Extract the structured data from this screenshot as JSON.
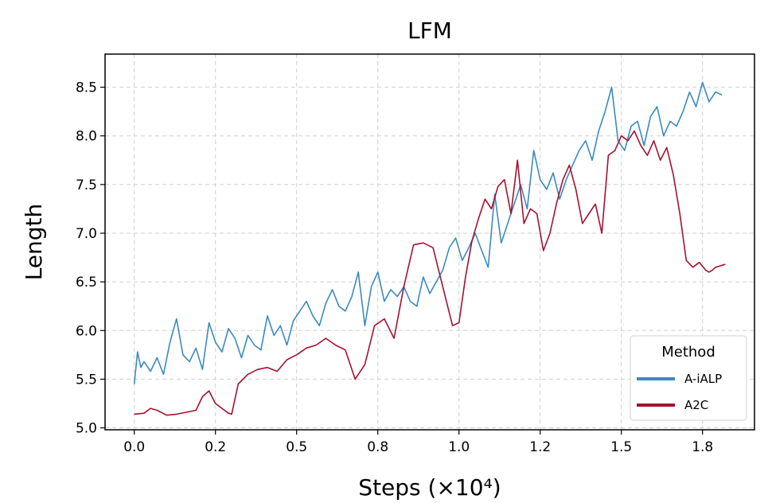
{
  "chart_data": {
    "type": "line",
    "title": "LFM",
    "xlabel": "Steps (×10⁴)",
    "ylabel": "Length",
    "xlim": [
      -0.09,
      1.91
    ],
    "ylim": [
      4.98,
      8.84
    ],
    "x_ticks": [
      0.0,
      0.25,
      0.5,
      0.75,
      1.0,
      1.25,
      1.5,
      1.75
    ],
    "x_tick_labels": [
      "0.0",
      "0.2",
      "0.5",
      "0.8",
      "1.0",
      "1.2",
      "1.5",
      "1.8"
    ],
    "y_ticks": [
      5.0,
      5.5,
      6.0,
      6.5,
      7.0,
      7.5,
      8.0,
      8.5
    ],
    "y_tick_labels": [
      "5.0",
      "5.5",
      "6.0",
      "6.5",
      "7.0",
      "7.5",
      "8.0",
      "8.5"
    ],
    "grid": true,
    "legend": {
      "title": "Method",
      "placement": "lower right"
    },
    "series": [
      {
        "name": "A-iALP",
        "color": "#3a8bbf",
        "x": [
          0.0,
          0.01,
          0.02,
          0.03,
          0.05,
          0.07,
          0.09,
          0.11,
          0.13,
          0.15,
          0.17,
          0.19,
          0.21,
          0.23,
          0.25,
          0.27,
          0.29,
          0.31,
          0.33,
          0.35,
          0.37,
          0.39,
          0.41,
          0.43,
          0.45,
          0.47,
          0.49,
          0.51,
          0.53,
          0.55,
          0.57,
          0.59,
          0.61,
          0.63,
          0.65,
          0.67,
          0.69,
          0.71,
          0.73,
          0.75,
          0.77,
          0.79,
          0.81,
          0.83,
          0.85,
          0.87,
          0.89,
          0.91,
          0.93,
          0.95,
          0.97,
          0.99,
          1.01,
          1.03,
          1.05,
          1.07,
          1.09,
          1.11,
          1.13,
          1.15,
          1.17,
          1.19,
          1.21,
          1.23,
          1.25,
          1.27,
          1.29,
          1.31,
          1.33,
          1.35,
          1.37,
          1.39,
          1.41,
          1.43,
          1.45,
          1.47,
          1.49,
          1.51,
          1.53,
          1.55,
          1.57,
          1.59,
          1.61,
          1.63,
          1.65,
          1.67,
          1.69,
          1.71,
          1.73,
          1.75,
          1.77,
          1.79,
          1.81
        ],
        "values": [
          5.45,
          5.78,
          5.62,
          5.68,
          5.58,
          5.72,
          5.55,
          5.88,
          6.12,
          5.75,
          5.68,
          5.82,
          5.6,
          6.08,
          5.88,
          5.78,
          6.02,
          5.92,
          5.72,
          5.95,
          5.85,
          5.8,
          6.15,
          5.95,
          6.05,
          5.85,
          6.1,
          6.2,
          6.3,
          6.15,
          6.05,
          6.28,
          6.42,
          6.25,
          6.2,
          6.35,
          6.6,
          6.05,
          6.45,
          6.6,
          6.3,
          6.42,
          6.35,
          6.45,
          6.3,
          6.25,
          6.55,
          6.38,
          6.5,
          6.62,
          6.85,
          6.95,
          6.72,
          6.85,
          7.0,
          6.82,
          6.65,
          7.4,
          6.9,
          7.1,
          7.3,
          7.5,
          7.25,
          7.85,
          7.55,
          7.45,
          7.62,
          7.35,
          7.55,
          7.7,
          7.85,
          7.95,
          7.75,
          8.05,
          8.25,
          8.5,
          7.95,
          7.85,
          8.1,
          8.15,
          7.9,
          8.2,
          8.3,
          8.0,
          8.15,
          8.1,
          8.25,
          8.45,
          8.3,
          8.55,
          8.35,
          8.45,
          8.42
        ]
      },
      {
        "name": "A2C",
        "color": "#a5122e",
        "x": [
          0.0,
          0.03,
          0.05,
          0.07,
          0.1,
          0.13,
          0.16,
          0.19,
          0.21,
          0.23,
          0.25,
          0.27,
          0.29,
          0.3,
          0.32,
          0.35,
          0.38,
          0.41,
          0.44,
          0.47,
          0.5,
          0.53,
          0.56,
          0.59,
          0.62,
          0.65,
          0.68,
          0.71,
          0.74,
          0.77,
          0.8,
          0.83,
          0.86,
          0.89,
          0.92,
          0.95,
          0.98,
          1.0,
          1.02,
          1.04,
          1.06,
          1.08,
          1.1,
          1.12,
          1.14,
          1.16,
          1.18,
          1.2,
          1.22,
          1.24,
          1.26,
          1.28,
          1.3,
          1.32,
          1.34,
          1.36,
          1.38,
          1.4,
          1.42,
          1.44,
          1.46,
          1.48,
          1.5,
          1.52,
          1.54,
          1.56,
          1.58,
          1.6,
          1.62,
          1.64,
          1.66,
          1.68,
          1.7,
          1.72,
          1.74,
          1.76,
          1.77,
          1.78,
          1.79,
          1.8,
          1.81,
          1.82
        ],
        "values": [
          5.14,
          5.15,
          5.2,
          5.18,
          5.13,
          5.14,
          5.16,
          5.18,
          5.32,
          5.38,
          5.25,
          5.2,
          5.15,
          5.14,
          5.45,
          5.55,
          5.6,
          5.62,
          5.58,
          5.7,
          5.75,
          5.82,
          5.85,
          5.92,
          5.85,
          5.8,
          5.5,
          5.65,
          6.05,
          6.12,
          5.92,
          6.45,
          6.88,
          6.9,
          6.85,
          6.45,
          6.05,
          6.08,
          6.55,
          6.92,
          7.15,
          7.35,
          7.25,
          7.48,
          7.55,
          7.2,
          7.75,
          7.1,
          7.25,
          7.2,
          6.82,
          7.0,
          7.3,
          7.55,
          7.7,
          7.45,
          7.1,
          7.2,
          7.3,
          7.0,
          7.8,
          7.85,
          8.0,
          7.95,
          8.05,
          7.9,
          7.8,
          7.95,
          7.75,
          7.88,
          7.6,
          7.2,
          6.72,
          6.65,
          6.7,
          6.62,
          6.6,
          6.62,
          6.65,
          6.66,
          6.67,
          6.68
        ]
      }
    ]
  }
}
